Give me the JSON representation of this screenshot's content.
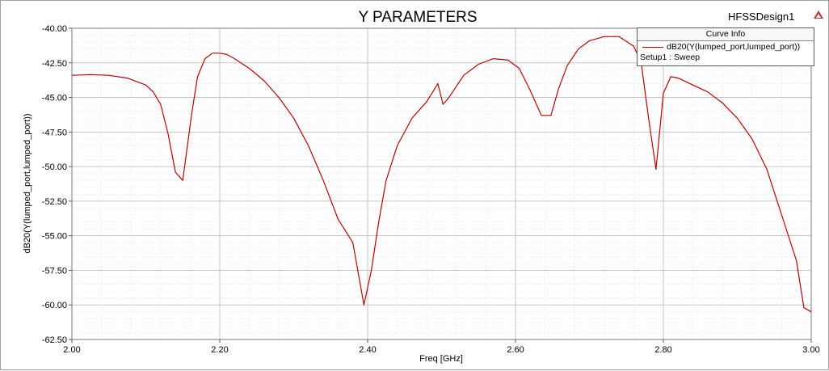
{
  "chart_data": {
    "type": "line",
    "title": "Y PARAMETERS",
    "design_name": "HFSSDesign1",
    "xlabel": "Freq [GHz]",
    "ylabel": "dB20(Y(lumped_port,lumped_port))",
    "xlim": [
      2.0,
      3.0
    ],
    "ylim": [
      -62.5,
      -40.0
    ],
    "x_ticks": [
      "2.00",
      "2.20",
      "2.40",
      "2.60",
      "2.80",
      "3.00"
    ],
    "y_ticks": [
      "-40.00",
      "-42.50",
      "-45.00",
      "-47.50",
      "-50.00",
      "-52.50",
      "-55.00",
      "-57.50",
      "-60.00",
      "-62.50"
    ],
    "grid": true,
    "legend": {
      "title": "Curve Info",
      "entry": "dB20(Y(lumped_port,lumped_port))",
      "setup": "Setup1 : Sweep",
      "placement": "top-right"
    },
    "series": [
      {
        "color": "#c00000",
        "x": [
          2.0,
          2.025,
          2.05,
          2.075,
          2.1,
          2.11,
          2.12,
          2.13,
          2.14,
          2.15,
          2.162,
          2.17,
          2.18,
          2.19,
          2.2,
          2.21,
          2.22,
          2.24,
          2.26,
          2.28,
          2.3,
          2.32,
          2.34,
          2.36,
          2.38,
          2.395,
          2.405,
          2.415,
          2.425,
          2.44,
          2.46,
          2.48,
          2.495,
          2.502,
          2.51,
          2.53,
          2.55,
          2.57,
          2.59,
          2.605,
          2.62,
          2.635,
          2.648,
          2.658,
          2.67,
          2.685,
          2.7,
          2.72,
          2.74,
          2.76,
          2.77,
          2.78,
          2.79,
          2.8,
          2.81,
          2.82,
          2.84,
          2.86,
          2.88,
          2.9,
          2.92,
          2.94,
          2.96,
          2.98,
          2.99,
          3.0
        ],
        "y": [
          -43.4,
          -43.35,
          -43.4,
          -43.6,
          -44.1,
          -44.6,
          -45.5,
          -47.6,
          -50.4,
          -51.0,
          -46.2,
          -43.5,
          -42.2,
          -41.8,
          -41.8,
          -41.9,
          -42.2,
          -42.9,
          -43.8,
          -45.0,
          -46.5,
          -48.5,
          -51.0,
          -53.8,
          -55.5,
          -60.0,
          -57.5,
          -54.0,
          -51.0,
          -48.5,
          -46.5,
          -45.3,
          -44.0,
          -45.5,
          -45.0,
          -43.4,
          -42.6,
          -42.2,
          -42.3,
          -42.9,
          -44.5,
          -46.3,
          -46.3,
          -44.4,
          -42.7,
          -41.5,
          -40.9,
          -40.6,
          -40.6,
          -41.3,
          -42.5,
          -46.5,
          -50.2,
          -44.7,
          -43.5,
          -43.6,
          -44.1,
          -44.6,
          -45.4,
          -46.5,
          -48.0,
          -50.2,
          -53.5,
          -56.8,
          -60.2,
          -60.5
        ]
      }
    ]
  }
}
